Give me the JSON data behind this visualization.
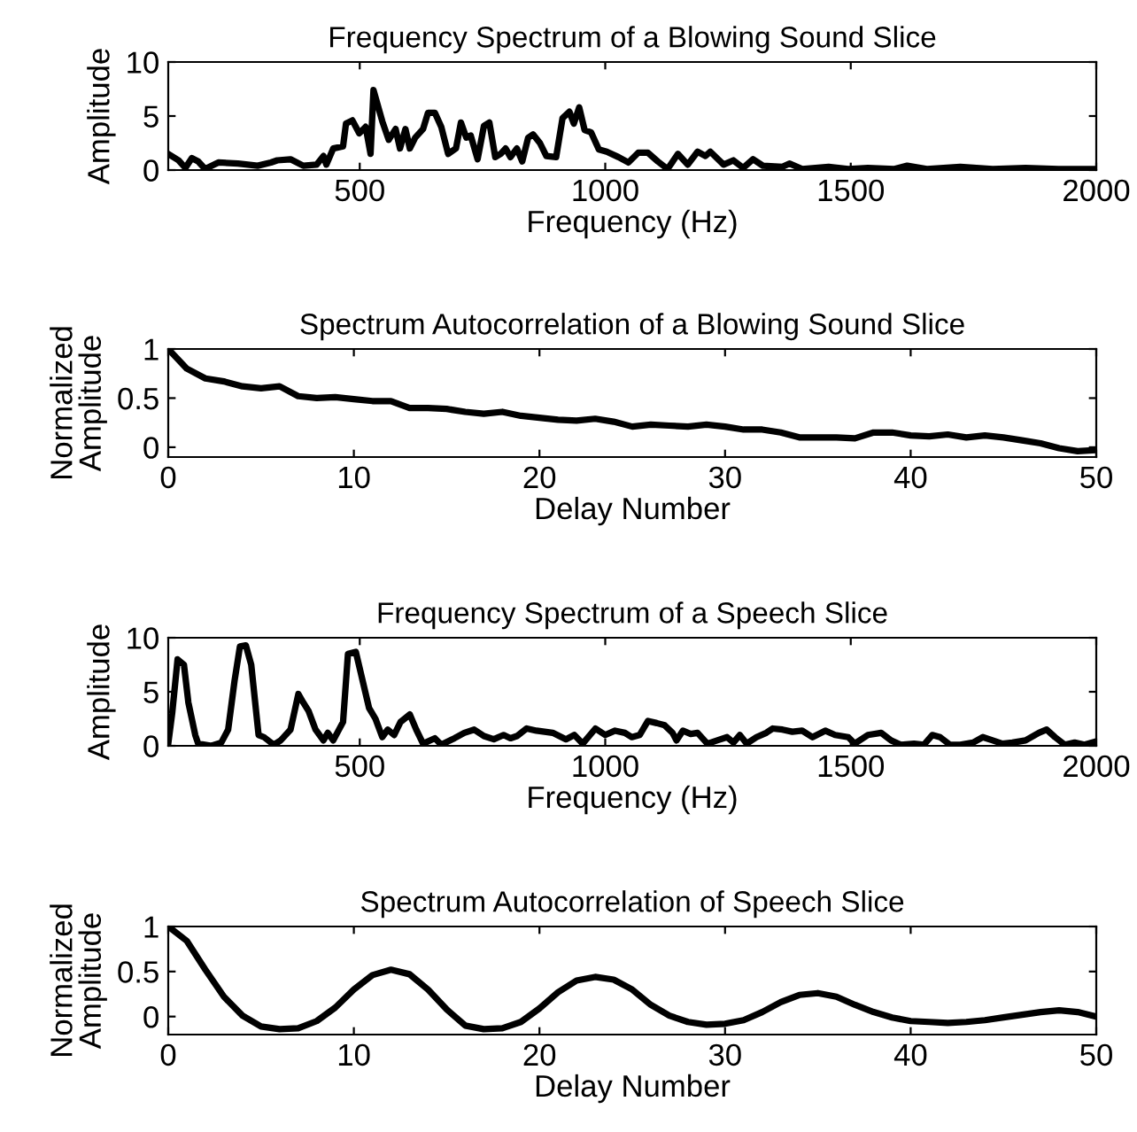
{
  "chart_data": [
    {
      "type": "line",
      "title": "Frequency Spectrum of a Blowing Sound Slice",
      "xlabel": "Frequency (Hz)",
      "ylabel": "Amplitude",
      "xlim": [
        110,
        2000
      ],
      "xticks": [
        500,
        1000,
        1500,
        2000
      ],
      "ylim": [
        0,
        10
      ],
      "yticks": [
        0,
        5,
        10
      ],
      "grid": false,
      "legend": false,
      "series": [
        {
          "color": "#000000",
          "x": [
            110,
            131,
            145,
            158,
            171,
            185,
            212,
            252,
            292,
            319,
            332,
            359,
            385,
            412,
            426,
            432,
            446,
            466,
            472,
            485,
            499,
            512,
            522,
            528,
            546,
            559,
            573,
            582,
            593,
            602,
            613,
            629,
            639,
            653,
            666,
            680,
            696,
            706,
            717,
            726,
            740,
            753,
            764,
            776,
            787,
            797,
            807,
            820,
            831,
            843,
            853,
            867,
            880,
            900,
            913,
            927,
            936,
            947,
            958,
            971,
            987,
            1003,
            1027,
            1047,
            1067,
            1087,
            1107,
            1127,
            1148,
            1168,
            1188,
            1204,
            1214,
            1241,
            1261,
            1281,
            1301,
            1321,
            1361,
            1375,
            1401,
            1455,
            1495,
            1535,
            1589,
            1615,
            1655,
            1723,
            1789,
            1856,
            1923,
            2000
          ],
          "values": [
            1.5,
            0.9,
            0.2,
            1.1,
            0.8,
            0.1,
            0.7,
            0.6,
            0.4,
            0.7,
            0.9,
            1.0,
            0.4,
            0.5,
            1.3,
            0.5,
            2.0,
            2.2,
            4.3,
            4.6,
            3.4,
            4.0,
            1.5,
            7.4,
            4.5,
            2.8,
            3.8,
            2.0,
            3.8,
            2.0,
            3.0,
            3.8,
            5.3,
            5.3,
            4.0,
            1.5,
            2.0,
            4.4,
            3.0,
            3.2,
            1.0,
            4.1,
            4.4,
            1.2,
            1.5,
            2.0,
            1.2,
            2.0,
            0.8,
            3.0,
            3.3,
            2.5,
            1.3,
            1.2,
            4.8,
            5.4,
            4.3,
            5.8,
            3.7,
            3.5,
            1.9,
            1.7,
            1.2,
            0.7,
            1.6,
            1.6,
            0.8,
            0.1,
            1.5,
            0.5,
            1.7,
            1.3,
            1.7,
            0.5,
            0.9,
            0.2,
            1.0,
            0.4,
            0.3,
            0.6,
            0.1,
            0.3,
            0.1,
            0.2,
            0.1,
            0.4,
            0.1,
            0.3,
            0.1,
            0.2,
            0.1,
            0.1
          ]
        }
      ]
    },
    {
      "type": "line",
      "title": "Spectrum Autocorrelation of a Blowing Sound Slice",
      "xlabel": "Delay Number",
      "ylabel": "Normalized\nAmplitude",
      "xlim": [
        0,
        50
      ],
      "xticks": [
        0,
        10,
        20,
        30,
        40,
        50
      ],
      "ylim": [
        -0.1,
        1
      ],
      "yticks": [
        0,
        0.5,
        1
      ],
      "grid": false,
      "legend": false,
      "series": [
        {
          "color": "#000000",
          "x": [
            0,
            1,
            2,
            3,
            4,
            5,
            6,
            7,
            8,
            9,
            10,
            11,
            12,
            13,
            14,
            15,
            16,
            17,
            18,
            19,
            20,
            21,
            22,
            23,
            24,
            25,
            26,
            27,
            28,
            29,
            30,
            31,
            32,
            33,
            34,
            35,
            36,
            37,
            38,
            39,
            40,
            41,
            42,
            43,
            44,
            45,
            46,
            47,
            48,
            49,
            50
          ],
          "values": [
            1.0,
            0.8,
            0.7,
            0.67,
            0.62,
            0.6,
            0.62,
            0.52,
            0.5,
            0.51,
            0.49,
            0.47,
            0.47,
            0.4,
            0.4,
            0.39,
            0.36,
            0.34,
            0.36,
            0.32,
            0.3,
            0.28,
            0.27,
            0.29,
            0.26,
            0.21,
            0.23,
            0.22,
            0.21,
            0.23,
            0.21,
            0.18,
            0.18,
            0.15,
            0.1,
            0.1,
            0.1,
            0.09,
            0.15,
            0.15,
            0.12,
            0.11,
            0.13,
            0.1,
            0.12,
            0.1,
            0.07,
            0.04,
            -0.01,
            -0.04,
            -0.03
          ]
        }
      ]
    },
    {
      "type": "line",
      "title": "Frequency Spectrum of a Speech Slice",
      "xlabel": "Frequency (Hz)",
      "ylabel": "Amplitude",
      "xlim": [
        110,
        2000
      ],
      "xticks": [
        500,
        1000,
        1500,
        2000
      ],
      "ylim": [
        0,
        10
      ],
      "yticks": [
        0,
        5,
        10
      ],
      "grid": false,
      "legend": false,
      "series": [
        {
          "color": "#000000",
          "x": [
            110,
            118,
            129,
            142,
            151,
            165,
            171,
            198,
            218,
            232,
            245,
            256,
            268,
            279,
            294,
            305,
            325,
            339,
            359,
            375,
            385,
            396,
            410,
            426,
            435,
            446,
            466,
            476,
            492,
            506,
            519,
            532,
            546,
            557,
            570,
            583,
            602,
            615,
            629,
            653,
            666,
            693,
            713,
            733,
            753,
            773,
            793,
            807,
            820,
            840,
            860,
            893,
            920,
            937,
            954,
            980,
            1000,
            1020,
            1040,
            1054,
            1070,
            1087,
            1105,
            1121,
            1137,
            1145,
            1158,
            1174,
            1188,
            1208,
            1228,
            1248,
            1261,
            1274,
            1288,
            1308,
            1328,
            1341,
            1361,
            1381,
            1401,
            1422,
            1448,
            1468,
            1495,
            1508,
            1535,
            1562,
            1582,
            1602,
            1629,
            1649,
            1666,
            1682,
            1702,
            1723,
            1749,
            1769,
            1789,
            1809,
            1829,
            1856,
            1883,
            1899,
            1916,
            1936,
            1956,
            1976,
            2000
          ],
          "values": [
            0.2,
            3.0,
            8.0,
            7.5,
            4.0,
            1.0,
            0.2,
            0.0,
            0.3,
            1.5,
            6.0,
            9.2,
            9.3,
            7.5,
            1.0,
            0.8,
            0.1,
            0.5,
            1.5,
            4.8,
            4.0,
            3.2,
            1.5,
            0.5,
            1.2,
            0.5,
            2.2,
            8.5,
            8.7,
            6.0,
            3.5,
            2.5,
            0.8,
            1.5,
            1.0,
            2.2,
            2.9,
            1.5,
            0.2,
            0.7,
            0.1,
            0.7,
            1.2,
            1.5,
            0.9,
            0.6,
            1.0,
            0.7,
            0.9,
            1.6,
            1.4,
            1.2,
            0.6,
            1.0,
            0.2,
            1.6,
            1.0,
            1.4,
            1.2,
            0.8,
            1.0,
            2.3,
            2.1,
            1.9,
            1.2,
            0.5,
            1.4,
            1.1,
            1.2,
            0.2,
            0.5,
            0.8,
            0.3,
            1.0,
            0.2,
            0.8,
            1.2,
            1.6,
            1.5,
            1.3,
            1.4,
            0.8,
            1.4,
            1.0,
            0.8,
            0.2,
            1.0,
            1.2,
            0.5,
            0.1,
            0.2,
            0.1,
            1.0,
            0.8,
            0.1,
            0.1,
            0.3,
            0.8,
            0.5,
            0.2,
            0.3,
            0.5,
            1.2,
            1.5,
            0.8,
            0.1,
            0.3,
            0.1,
            0.4
          ]
        }
      ]
    },
    {
      "type": "line",
      "title": "Spectrum Autocorrelation of Speech Slice",
      "xlabel": "Delay Number",
      "ylabel": "Normalized\nAmplitude",
      "xlim": [
        0,
        50
      ],
      "xticks": [
        0,
        10,
        20,
        30,
        40,
        50
      ],
      "ylim": [
        -0.2,
        1
      ],
      "yticks": [
        0,
        0.5,
        1
      ],
      "grid": false,
      "legend": false,
      "series": [
        {
          "color": "#000000",
          "x": [
            0,
            1,
            2,
            3,
            4,
            5,
            6,
            7,
            8,
            9,
            10,
            11,
            12,
            13,
            14,
            15,
            16,
            17,
            18,
            19,
            20,
            21,
            22,
            23,
            24,
            25,
            26,
            27,
            28,
            29,
            30,
            31,
            32,
            33,
            34,
            35,
            36,
            37,
            38,
            39,
            40,
            41,
            42,
            43,
            44,
            45,
            46,
            47,
            48,
            49,
            50
          ],
          "values": [
            1.0,
            0.84,
            0.52,
            0.22,
            0.01,
            -0.11,
            -0.14,
            -0.13,
            -0.05,
            0.1,
            0.3,
            0.46,
            0.52,
            0.47,
            0.3,
            0.08,
            -0.1,
            -0.14,
            -0.13,
            -0.06,
            0.09,
            0.27,
            0.4,
            0.44,
            0.41,
            0.3,
            0.13,
            0.01,
            -0.06,
            -0.09,
            -0.08,
            -0.04,
            0.05,
            0.16,
            0.24,
            0.26,
            0.22,
            0.13,
            0.05,
            -0.01,
            -0.05,
            -0.06,
            -0.07,
            -0.06,
            -0.04,
            -0.01,
            0.02,
            0.05,
            0.07,
            0.05,
            0.0
          ]
        }
      ]
    }
  ]
}
